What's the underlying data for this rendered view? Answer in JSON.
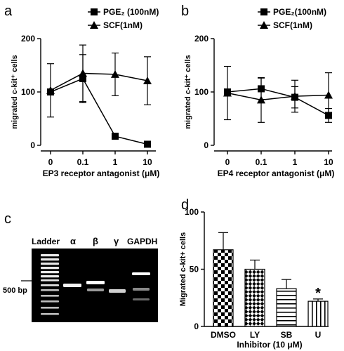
{
  "panels": {
    "a": "a",
    "b": "b",
    "c": "c",
    "d": "d"
  },
  "chart_data": [
    {
      "panel": "a",
      "type": "line",
      "categories": [
        "0",
        "0.1",
        "1",
        "10"
      ],
      "ylabel": "migrated c-kit⁺ cells",
      "xlabel": "EP3 receptor antagonist (μM)",
      "ylim": [
        0,
        200
      ],
      "yticks": [
        "0",
        "100",
        "200"
      ],
      "legend_position": "top-right",
      "series": [
        {
          "name": "PGE₂ (100nM)",
          "marker": "square",
          "values": [
            100,
            125,
            17,
            2
          ],
          "errors": [
            5,
            45,
            4,
            2
          ]
        },
        {
          "name": "SCF(1nM)",
          "marker": "triangle",
          "values": [
            103,
            135,
            133,
            121
          ],
          "errors": [
            50,
            53,
            40,
            45
          ]
        }
      ]
    },
    {
      "panel": "b",
      "type": "line",
      "categories": [
        "0",
        "0.1",
        "1",
        "10"
      ],
      "ylabel": "migrated c-kit⁺ cells",
      "xlabel": "EP4 receptor antagonist (μM)",
      "ylim": [
        0,
        200
      ],
      "yticks": [
        "0",
        "100",
        "200"
      ],
      "legend_position": "top-right",
      "series": [
        {
          "name": "PGE₂(100nM)",
          "marker": "square",
          "values": [
            100,
            106,
            90,
            56
          ],
          "errors": [
            5,
            20,
            20,
            13
          ]
        },
        {
          "name": "SCF(1nM)",
          "marker": "triangle",
          "values": [
            98,
            85,
            92,
            94
          ],
          "errors": [
            50,
            42,
            30,
            42
          ]
        }
      ]
    },
    {
      "panel": "d",
      "type": "bar",
      "categories": [
        "DMSO",
        "LY",
        "SB",
        "U"
      ],
      "values": [
        67,
        50,
        33,
        22
      ],
      "errors": [
        15,
        8,
        8,
        2
      ],
      "patterns": [
        "checker-large",
        "checker-small",
        "horizontal-lines",
        "vertical-lines"
      ],
      "annotations": [
        "",
        "",
        "",
        "*"
      ],
      "ylabel": "Migrated c-kit+ cells",
      "xlabel": "Inhibitor (10 μM)",
      "ylim": [
        0,
        100
      ],
      "yticks": [
        "0",
        "50",
        "100"
      ]
    }
  ],
  "gel": {
    "lane_labels": [
      "Ladder",
      "α",
      "β",
      "γ",
      "GAPDH"
    ],
    "marker_label": "500 bp"
  }
}
